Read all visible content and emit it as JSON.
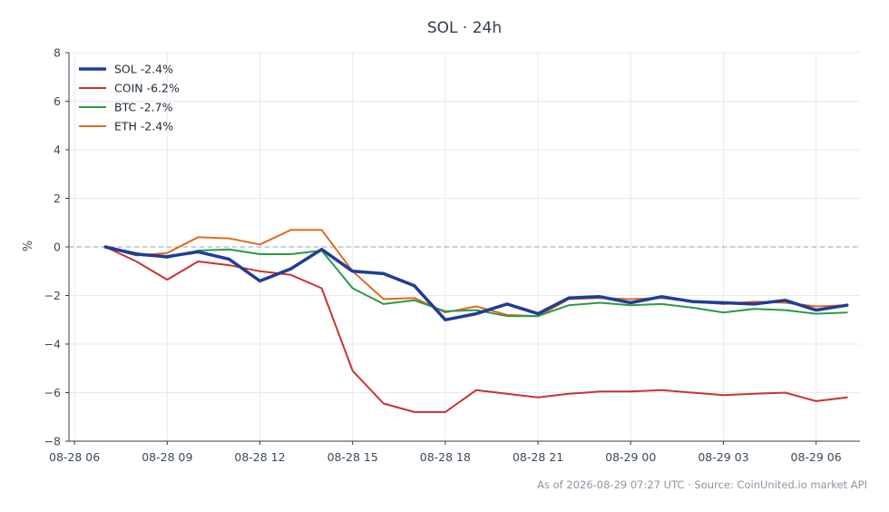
{
  "chart_data": {
    "type": "line",
    "title": "SOL · 24h",
    "xlabel": "",
    "ylabel": "%",
    "ylim": [
      -8,
      8
    ],
    "yticks": [
      -8,
      -6,
      -4,
      -2,
      0,
      2,
      4,
      6,
      8
    ],
    "xticks": [
      {
        "t": 0,
        "label": "08-28 06"
      },
      {
        "t": 3,
        "label": "08-28 09"
      },
      {
        "t": 6,
        "label": "08-28 12"
      },
      {
        "t": 9,
        "label": "08-28 15"
      },
      {
        "t": 12,
        "label": "08-28 18"
      },
      {
        "t": 15,
        "label": "08-28 21"
      },
      {
        "t": 18,
        "label": "08-29 00"
      },
      {
        "t": 21,
        "label": "08-29 03"
      },
      {
        "t": 24,
        "label": "08-29 06"
      }
    ],
    "x": [
      "08-28 07",
      "08-28 08",
      "08-28 09",
      "08-28 10",
      "08-28 11",
      "08-28 12",
      "08-28 13",
      "08-28 14",
      "08-28 15",
      "08-28 16",
      "08-28 17",
      "08-28 18",
      "08-28 19",
      "08-28 20",
      "08-28 21",
      "08-28 22",
      "08-28 23",
      "08-29 00",
      "08-29 01",
      "08-29 02",
      "08-29 03",
      "08-29 04",
      "08-29 05",
      "08-29 06",
      "08-29 07"
    ],
    "grid": true,
    "zero_line": true,
    "legend_position": "top-left",
    "series": [
      {
        "name": "SOL -2.4%",
        "color": "#1f3d99",
        "width": 3.5,
        "values": [
          0.0,
          -0.3,
          -0.4,
          -0.2,
          -0.5,
          -1.4,
          -0.9,
          -0.1,
          -1.0,
          -1.1,
          -1.6,
          -3.0,
          -2.75,
          -2.35,
          -2.75,
          -2.1,
          -2.05,
          -2.3,
          -2.05,
          -2.25,
          -2.3,
          -2.35,
          -2.2,
          -2.6,
          -2.4
        ]
      },
      {
        "name": "COIN -6.2%",
        "color": "#c8342f",
        "width": 2,
        "values": [
          0.0,
          -0.6,
          -1.35,
          -0.6,
          -0.75,
          -1.0,
          -1.15,
          -1.7,
          -5.1,
          -6.45,
          -6.8,
          -6.8,
          -5.9,
          -6.05,
          -6.2,
          -6.05,
          -5.95,
          -5.95,
          -5.9,
          -6.0,
          -6.1,
          -6.05,
          -6.0,
          -6.35,
          -6.2
        ]
      },
      {
        "name": "BTC -2.7%",
        "color": "#2a9a46",
        "width": 2,
        "values": [
          0.0,
          -0.25,
          -0.45,
          -0.15,
          -0.1,
          -0.3,
          -0.3,
          -0.15,
          -1.7,
          -2.35,
          -2.2,
          -2.65,
          -2.6,
          -2.85,
          -2.85,
          -2.4,
          -2.3,
          -2.4,
          -2.35,
          -2.5,
          -2.7,
          -2.55,
          -2.6,
          -2.75,
          -2.7
        ]
      },
      {
        "name": "ETH -2.4%",
        "color": "#e06b1e",
        "width": 2,
        "values": [
          0.0,
          -0.35,
          -0.25,
          0.4,
          0.35,
          0.1,
          0.7,
          0.7,
          -1.0,
          -2.15,
          -2.1,
          -2.7,
          -2.45,
          -2.8,
          -2.85,
          -2.15,
          -2.1,
          -2.15,
          -2.1,
          -2.25,
          -2.35,
          -2.25,
          -2.3,
          -2.45,
          -2.4
        ]
      }
    ]
  },
  "footer": {
    "text": "As of 2026-08-29 07:27 UTC · Source: CoinUnited.io market API"
  }
}
